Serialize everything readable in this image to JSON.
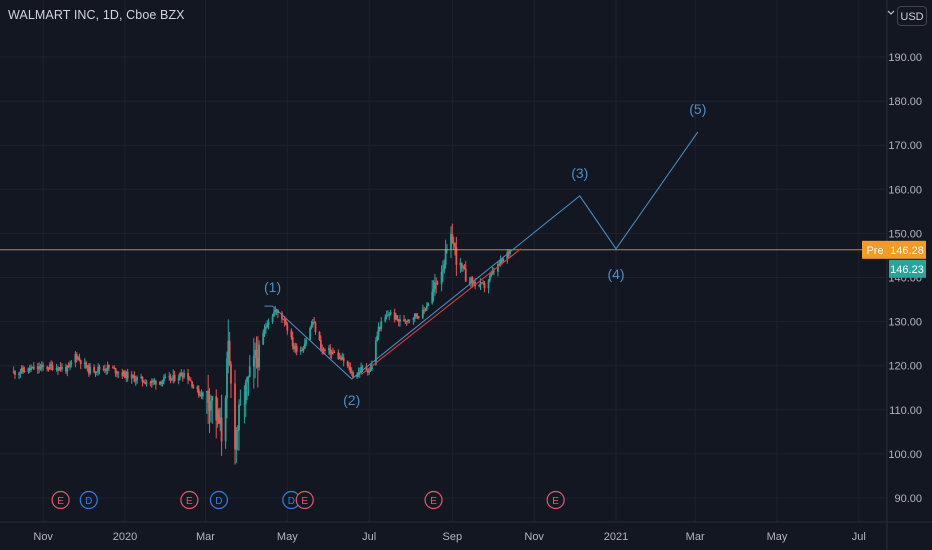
{
  "header": {
    "title": "WALMART INC, 1D, Cboe BZX",
    "currency_label": "USD"
  },
  "price_scale": {
    "labels": [
      "190.00",
      "180.00",
      "170.00",
      "160.00",
      "150.00",
      "140.00",
      "130.00",
      "120.00",
      "110.00",
      "100.00",
      "90.00"
    ],
    "pre_badge_label": "Pre",
    "pre_price": "146.28",
    "last_price": "146.23",
    "pre_color": "#f59b22",
    "last_color": "#26a69a"
  },
  "time_scale": {
    "labels": [
      "Nov",
      "2020",
      "Mar",
      "May",
      "Jul",
      "Sep",
      "Nov",
      "2021",
      "Mar",
      "May",
      "Jul"
    ]
  },
  "events": [
    "E",
    "D",
    "E",
    "D",
    "D",
    "E",
    "E",
    "E"
  ],
  "wave_labels": [
    "(1)",
    "(2)",
    "(3)",
    "(4)",
    "(5)"
  ],
  "chart_data": {
    "type": "candlestick",
    "title": "WALMART INC, 1D, Cboe BZX",
    "y_axis": {
      "unit": "USD",
      "range": [
        86,
        196
      ],
      "ticks": [
        90,
        100,
        110,
        120,
        130,
        140,
        150,
        160,
        170,
        180,
        190
      ]
    },
    "x_axis": {
      "ticks": [
        "Nov",
        "2020",
        "Mar",
        "May",
        "Jul",
        "Sep",
        "Nov",
        "2021",
        "Mar",
        "May",
        "Jul"
      ]
    },
    "colors": {
      "up": "#26a69a",
      "down": "#ef5350",
      "wave_line": "#4a90c8",
      "trend_line": "#e53935",
      "pre_line": "#d4b43a"
    },
    "price_path": [
      {
        "date": "2019-10-10",
        "close": 118.5
      },
      {
        "date": "2019-10-25",
        "close": 119.3
      },
      {
        "date": "2019-11-08",
        "close": 119.8
      },
      {
        "date": "2019-11-20",
        "close": 119.2
      },
      {
        "date": "2019-11-25",
        "close": 122.5
      },
      {
        "date": "2019-12-05",
        "close": 119.0
      },
      {
        "date": "2019-12-20",
        "close": 119.6
      },
      {
        "date": "2020-01-05",
        "close": 117.4
      },
      {
        "date": "2020-01-20",
        "close": 116.2
      },
      {
        "date": "2020-02-05",
        "close": 117.0
      },
      {
        "date": "2020-02-15",
        "close": 118.5
      },
      {
        "date": "2020-02-24",
        "close": 114.0
      },
      {
        "date": "2020-03-05",
        "close": 113.0
      },
      {
        "date": "2020-03-13",
        "close": 104.5
      },
      {
        "date": "2020-03-18",
        "close": 122.5
      },
      {
        "date": "2020-03-23",
        "close": 104.0
      },
      {
        "date": "2020-03-30",
        "close": 113.0
      },
      {
        "date": "2020-04-08",
        "close": 122.0
      },
      {
        "date": "2020-04-16",
        "close": 130.0
      },
      {
        "date": "2020-04-22",
        "close": 132.5
      },
      {
        "date": "2020-04-29",
        "close": 130.5
      },
      {
        "date": "2020-05-06",
        "close": 124.0
      },
      {
        "date": "2020-05-12",
        "close": 123.8
      },
      {
        "date": "2020-05-20",
        "close": 130.0
      },
      {
        "date": "2020-05-27",
        "close": 123.5
      },
      {
        "date": "2020-06-04",
        "close": 123.0
      },
      {
        "date": "2020-06-12",
        "close": 121.0
      },
      {
        "date": "2020-06-20",
        "close": 117.5
      },
      {
        "date": "2020-06-26",
        "close": 119.5
      },
      {
        "date": "2020-07-02",
        "close": 119.0
      },
      {
        "date": "2020-07-08",
        "close": 128.5
      },
      {
        "date": "2020-07-16",
        "close": 132.0
      },
      {
        "date": "2020-07-24",
        "close": 130.0
      },
      {
        "date": "2020-08-01",
        "close": 131.0
      },
      {
        "date": "2020-08-10",
        "close": 132.0
      },
      {
        "date": "2020-08-18",
        "close": 137.0
      },
      {
        "date": "2020-08-25",
        "close": 143.0
      },
      {
        "date": "2020-09-01",
        "close": 149.0
      },
      {
        "date": "2020-09-05",
        "close": 143.0
      },
      {
        "date": "2020-09-10",
        "close": 140.5
      },
      {
        "date": "2020-09-18",
        "close": 138.5
      },
      {
        "date": "2020-09-25",
        "close": 138.0
      },
      {
        "date": "2020-10-02",
        "close": 141.5
      },
      {
        "date": "2020-10-09",
        "close": 144.0
      },
      {
        "date": "2020-10-14",
        "close": 146.23
      }
    ],
    "elliott_wave": {
      "points": [
        {
          "label": "(1)",
          "date": "2020-04-20",
          "price": 133.5
        },
        {
          "label": "(2)",
          "date": "2020-06-18",
          "price": 117.0
        },
        {
          "label": "(3)",
          "date": "2020-12-05",
          "price": 158.5
        },
        {
          "label": "(4)",
          "date": "2021-01-01",
          "price": 146.5
        },
        {
          "label": "(5)",
          "date": "2021-03-03",
          "price": 173.0
        }
      ],
      "wave_start": {
        "date": "2020-04-14",
        "price": 133.5
      }
    },
    "trendline": [
      {
        "date": "2020-06-25",
        "price": 118.0
      },
      {
        "date": "2020-10-22",
        "price": 146.5
      }
    ],
    "pre_market_price": 146.28,
    "last_price": 146.23
  }
}
